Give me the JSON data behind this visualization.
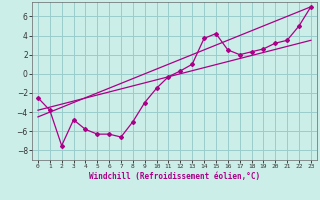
{
  "xlabel": "Windchill (Refroidissement éolien,°C)",
  "bg_color": "#cceee8",
  "grid_color": "#99cccc",
  "line_color": "#aa0088",
  "xlim": [
    -0.5,
    23.5
  ],
  "ylim": [
    -9,
    7.5
  ],
  "yticks": [
    -8,
    -6,
    -4,
    -2,
    0,
    2,
    4,
    6
  ],
  "xticks": [
    0,
    1,
    2,
    3,
    4,
    5,
    6,
    7,
    8,
    9,
    10,
    11,
    12,
    13,
    14,
    15,
    16,
    17,
    18,
    19,
    20,
    21,
    22,
    23
  ],
  "zigzag_x": [
    0,
    1,
    2,
    3,
    4,
    5,
    6,
    7,
    8,
    9,
    10,
    11,
    12,
    13,
    14,
    15,
    16,
    17,
    18,
    19,
    20,
    21,
    22,
    23
  ],
  "zigzag_y": [
    -2.5,
    -3.8,
    -7.5,
    -4.8,
    -5.8,
    -6.3,
    -6.3,
    -6.6,
    -5.0,
    -3.0,
    -1.5,
    -0.3,
    0.3,
    1.0,
    3.7,
    4.2,
    2.5,
    2.0,
    2.3,
    2.6,
    3.2,
    3.5,
    5.0,
    7.0
  ],
  "line1_x": [
    0,
    23
  ],
  "line1_y": [
    -3.8,
    3.5
  ],
  "line2_x": [
    0,
    23
  ],
  "line2_y": [
    -4.5,
    7.0
  ]
}
